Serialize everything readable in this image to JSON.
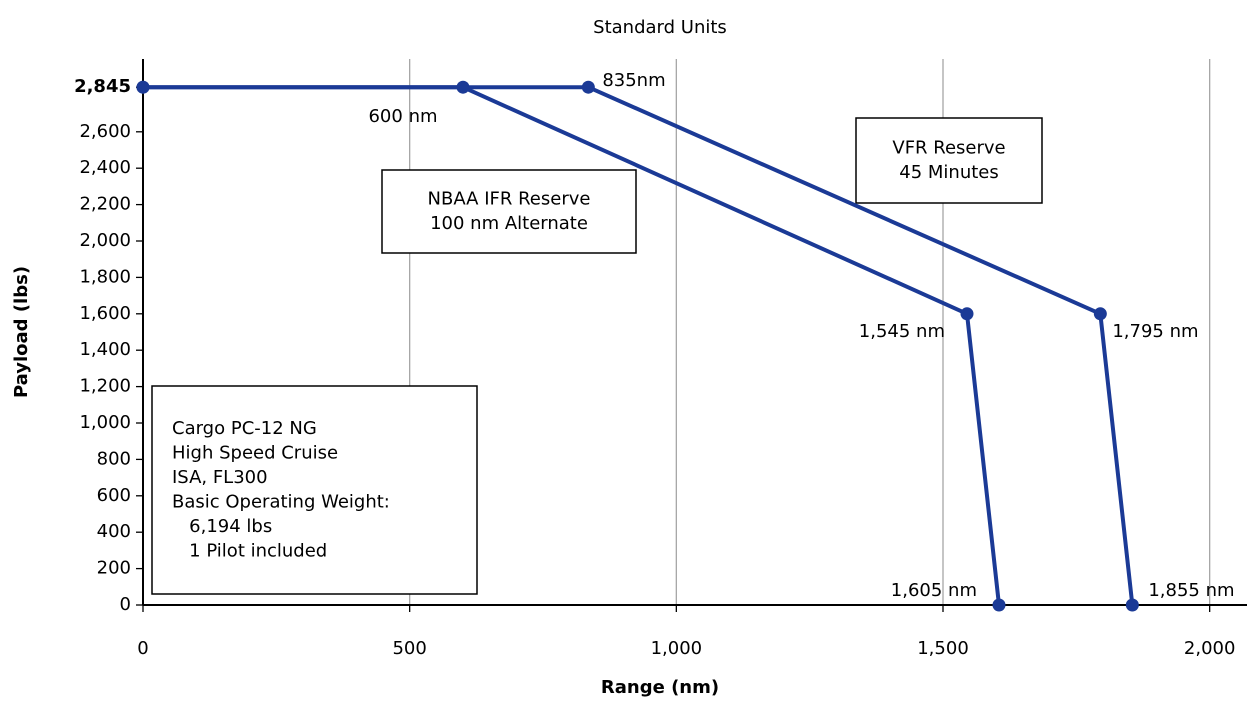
{
  "chart_data": {
    "type": "line",
    "title": "Standard Units",
    "xlabel": "Range (nm)",
    "ylabel": "Payload (lbs)",
    "series": [
      {
        "color": "#1b3a96",
        "x": [
          0,
          600,
          1545,
          1605
        ],
        "values": [
          2845,
          2845,
          1600,
          0
        ],
        "value_labels": [
          null,
          "600 nm",
          "1,545 nm",
          "1,605 nm"
        ]
      },
      {
        "color": "#1b3a96",
        "x": [
          0,
          835,
          1795,
          1855
        ],
        "values": [
          2845,
          2845,
          1600,
          0
        ],
        "value_labels": [
          null,
          "835nm",
          "1,795 nm",
          "1,855 nm"
        ]
      }
    ],
    "xlim": [
      0,
      2070
    ],
    "xticks": [
      0,
      500,
      {
        "value": 1000,
        "label": "1,000"
      },
      {
        "value": 1500,
        "label": "1,500"
      },
      {
        "value": 2000,
        "label": "2,000"
      }
    ],
    "ylim": [
      0,
      3000
    ],
    "yticks": [
      0,
      200,
      400,
      600,
      800,
      {
        "value": 1000,
        "label": "1,000"
      },
      {
        "value": 1200,
        "label": "1,200"
      },
      {
        "value": 1400,
        "label": "1,400"
      },
      {
        "value": 1600,
        "label": "1,600"
      },
      {
        "value": 1800,
        "label": "1,800"
      },
      {
        "value": 2000,
        "label": "2,000"
      },
      {
        "value": 2200,
        "label": "2,200"
      },
      {
        "value": 2400,
        "label": "2,400"
      },
      {
        "value": 2600,
        "label": "2,600"
      },
      {
        "value": 2845,
        "label": "2,845"
      }
    ],
    "xgrid": true,
    "annotations": [
      [
        "NBAA IFR Reserve",
        "100 nm Alternate"
      ],
      [
        "VFR Reserve",
        "45 Minutes"
      ],
      [
        "Cargo PC-12 NG",
        "High Speed Cruise",
        "ISA, FL300",
        "Basic Operating Weight:",
        "   6,194 lbs",
        "   1 Pilot included"
      ]
    ]
  }
}
